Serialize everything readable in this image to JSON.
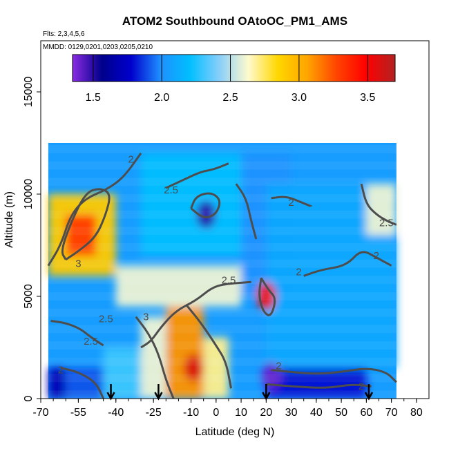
{
  "chart_data": {
    "type": "heatmap",
    "title": "ATOM2 Southbound OAtoOC_PM1_AMS",
    "annotations": [
      "Flts: 2,3,4,5,6",
      "MMDD: 0129,0201,0203,0205,0210"
    ],
    "xlabel": "Latitude (deg N)",
    "ylabel": "Altitude (m)",
    "xlim": [
      -70,
      85
    ],
    "ylim": [
      0,
      17500
    ],
    "x_ticks": [
      -70,
      -55,
      -40,
      -25,
      -10,
      0,
      10,
      20,
      30,
      40,
      50,
      60,
      70,
      80
    ],
    "y_ticks": [
      0,
      5000,
      10000,
      15000
    ],
    "colorbar": {
      "range": [
        1.35,
        3.7
      ],
      "ticks": [
        1.5,
        2.0,
        2.5,
        3.0,
        3.5
      ],
      "tick_labels": [
        "1.5",
        "2.0",
        "2.5",
        "3.0",
        "3.5"
      ],
      "colors": [
        "#8a2be2",
        "#00008b",
        "#0000cd",
        "#1e90ff",
        "#00bfff",
        "#87cefa",
        "#fffacd",
        "#ffd700",
        "#ffa500",
        "#ff4500",
        "#ff0000",
        "#b22222"
      ]
    },
    "field": {
      "latitude_range": [
        -67,
        72
      ],
      "altitude_range": [
        0,
        12500
      ],
      "regions": [
        {
          "lat": [
            -67,
            -60
          ],
          "alt": [
            0,
            1500
          ],
          "value": 1.7
        },
        {
          "lat": [
            -60,
            -45
          ],
          "alt": [
            0,
            1500
          ],
          "value": 1.9
        },
        {
          "lat": [
            -45,
            -30
          ],
          "alt": [
            0,
            2500
          ],
          "value": 2.3
        },
        {
          "lat": [
            -30,
            -20
          ],
          "alt": [
            0,
            4000
          ],
          "value": 2.6
        },
        {
          "lat": [
            -20,
            -5
          ],
          "alt": [
            0,
            4500
          ],
          "value": 3.1
        },
        {
          "lat": [
            -5,
            5
          ],
          "alt": [
            0,
            3000
          ],
          "value": 2.7
        },
        {
          "lat": [
            -67,
            -40
          ],
          "alt": [
            6000,
            10000
          ],
          "value": 2.9
        },
        {
          "lat": [
            -60,
            -48
          ],
          "alt": [
            7000,
            9000
          ],
          "value": 3.3
        },
        {
          "lat": [
            -40,
            10
          ],
          "alt": [
            4500,
            6500
          ],
          "value": 2.6
        },
        {
          "lat": [
            -30,
            10
          ],
          "alt": [
            7000,
            12000
          ],
          "value": 2.2
        },
        {
          "lat": [
            10,
            30
          ],
          "alt": [
            5000,
            12000
          ],
          "value": 2.0
        },
        {
          "lat": [
            20,
            60
          ],
          "alt": [
            0,
            1500
          ],
          "value": 1.8
        },
        {
          "lat": [
            20,
            72
          ],
          "alt": [
            1500,
            10500
          ],
          "value": 2.1
        },
        {
          "lat": [
            60,
            72
          ],
          "alt": [
            8000,
            10500
          ],
          "value": 2.6
        }
      ],
      "hotspots": [
        {
          "lat": 20,
          "alt": 5000,
          "value": 3.5
        },
        {
          "lat": -9,
          "alt": 1500,
          "value": 3.6
        },
        {
          "lat": -4,
          "alt": 9000,
          "value": 1.5
        },
        {
          "lat": 22,
          "alt": 1100,
          "value": 1.4
        }
      ]
    },
    "contours": [
      {
        "level": "2",
        "label_points": [
          {
            "lat": -34,
            "alt": 11700
          },
          {
            "lat": -62,
            "alt": 1400
          },
          {
            "lat": 25,
            "alt": 1600
          },
          {
            "lat": 33,
            "alt": 6200
          },
          {
            "lat": 64,
            "alt": 7000
          },
          {
            "lat": 58,
            "alt": 600
          },
          {
            "lat": 30,
            "alt": 9600
          }
        ]
      },
      {
        "level": "2.5",
        "label_points": [
          {
            "lat": -18,
            "alt": 10200
          },
          {
            "lat": 5,
            "alt": 5800
          },
          {
            "lat": -44,
            "alt": 3900
          },
          {
            "lat": -50,
            "alt": 2800
          },
          {
            "lat": 68,
            "alt": 8600
          }
        ]
      },
      {
        "level": "3",
        "label_points": [
          {
            "lat": -55,
            "alt": 6600
          },
          {
            "lat": -28,
            "alt": 4000
          }
        ]
      }
    ],
    "arrows_at_latitude": [
      -42,
      -23,
      20,
      61
    ]
  }
}
